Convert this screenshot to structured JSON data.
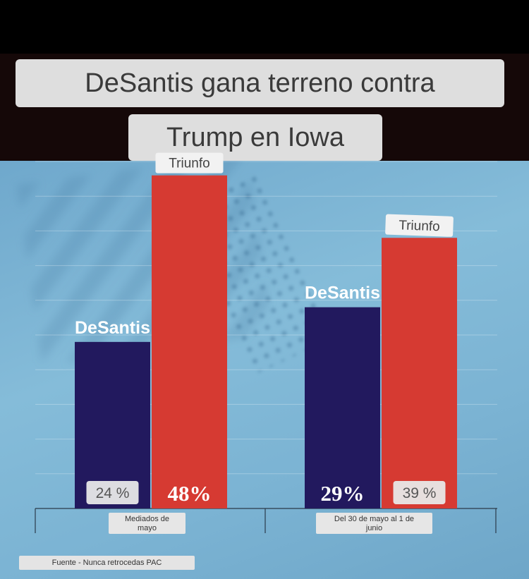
{
  "header": {
    "title_line1": "DeSantis gana terreno contra",
    "title_line2": "Trump en Iowa"
  },
  "source": "Fuente - Nunca retrocedas PAC",
  "colors": {
    "desantis": "#22195e",
    "trump": "#d63a32",
    "background": "#7fb5d5"
  },
  "chart_data": {
    "type": "bar",
    "categories": [
      "Mediados de mayo",
      "Del 30 de mayo al 1 de junio"
    ],
    "series": [
      {
        "name": "DeSantis",
        "values": [
          24,
          29
        ],
        "value_labels": [
          "24 %",
          "29%"
        ]
      },
      {
        "name": "Triunfo",
        "values": [
          48,
          39
        ],
        "value_labels": [
          "48%",
          "39 %"
        ]
      }
    ],
    "ylim": [
      0,
      50
    ],
    "grid": true
  }
}
